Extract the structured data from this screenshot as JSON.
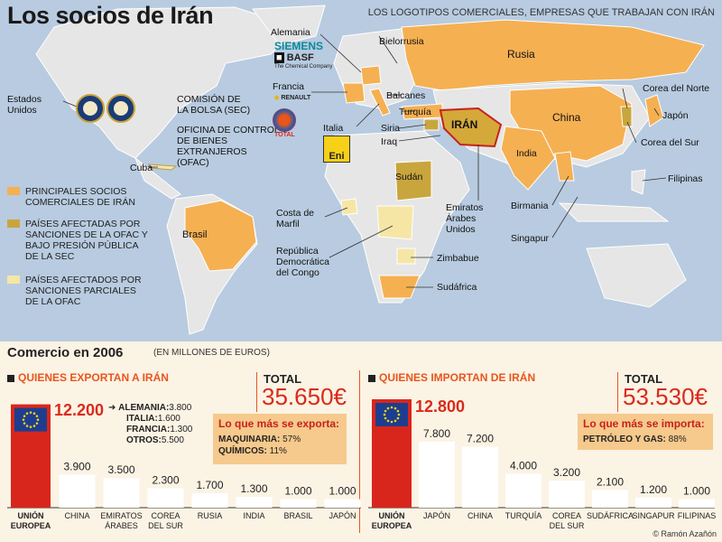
{
  "title": "Los socios de Irán",
  "logos_note": "LOS LOGOTIPOS COMERCIALES, EMPRESAS QUE TRABAJAN CON IRÁN",
  "map_labels": {
    "usa": "Estados\nUnidos",
    "sec": "COMISIÓN DE\nLA BOLSA (SEC)",
    "ofac": "OFICINA DE CONTROL\nDE BIENES\nEXTRANJEROS\n(OFAC)",
    "cuba": "Cuba",
    "brasil": "Brasil",
    "alemania": "Alemania",
    "francia": "Francia",
    "italia": "Italia",
    "bielorrusia": "Bielorrusia",
    "rusia": "Rusia",
    "balcanes": "Balcanes",
    "turquia": "Turquía",
    "siria": "Siria",
    "iraq": "Iraq",
    "iran": "IRÁN",
    "china": "China",
    "india": "India",
    "corea_norte": "Corea del Norte",
    "japon": "Japón",
    "corea_sur": "Corea del Sur",
    "filipinas": "Filipinas",
    "birmania": "Birmania",
    "singapur": "Singapur",
    "sudan": "Sudán",
    "emiratos": "Emiratos\nÁrabes\nUnidos",
    "costa_marfil": "Costa de\nMarfil",
    "congo": "República\nDemocrática\ndel Congo",
    "zimbabue": "Zimbabue",
    "sudafrica": "Sudáfrica"
  },
  "logos": {
    "siemens": "SIEMENS",
    "basf": "BASF",
    "basf_sub": "The Chemical Company",
    "renault": "RENAULT",
    "total": "TOTAL",
    "eni": "Eni"
  },
  "legend": [
    {
      "label": "PRINCIPALES SOCIOS COMERCIALES DE IRÁN",
      "color": "#f5b052"
    },
    {
      "label": "PAÍSES AFECTADAS POR SANCIONES DE LA OFAC Y BAJO PRESIÓN PÚBLICA DE LA SEC",
      "color": "#c9a53d"
    },
    {
      "label": "PAÍSES AFECTADOS POR SANCIONES PARCIALES DE LA OFAC",
      "color": "#f6e6a6"
    }
  ],
  "colors": {
    "partner": "#f5b052",
    "sanctioned": "#c9a53d",
    "partial": "#f6e6a6",
    "iran": "#d4a93a",
    "accent": "#e8561c",
    "red": "#d92b1b",
    "bar": "#ffffff",
    "eu": "#d9261c"
  },
  "trade": {
    "title": "Comercio en 2006",
    "subtitle": "(EN MILLONES DE EUROS)",
    "credit": "© Ramón Azañón"
  },
  "exports": {
    "panel_title": "QUIENES EXPORTAN A IRÁN",
    "total_label": "TOTAL",
    "total_value": "35.650€",
    "eu_value": "12.200",
    "breakdown": [
      {
        "k": "ALEMANIA:",
        "v": "3.800"
      },
      {
        "k": "ITALIA:",
        "v": "1.600"
      },
      {
        "k": "FRANCIA:",
        "v": "1.300"
      },
      {
        "k": "OTROS:",
        "v": "5.500"
      }
    ],
    "box_title": "Lo que más se exporta:",
    "box_rows": [
      {
        "k": "MAQUINARIA:",
        "v": "57%"
      },
      {
        "k": "QUÍMICOS:",
        "v": "11%"
      }
    ]
  },
  "imports": {
    "panel_title": "QUIENES IMPORTAN DE IRÁN",
    "total_label": "TOTAL",
    "total_value": "53.530€",
    "eu_value": "12.800",
    "box_title": "Lo que más se importa:",
    "box_rows": [
      {
        "k": "PETRÓLEO Y GAS:",
        "v": "88%"
      }
    ]
  },
  "chart_data": [
    {
      "type": "bar",
      "title": "QUIENES EXPORTAN A IRÁN",
      "categories": [
        "UNIÓN EUROPEA",
        "CHINA",
        "EMIRATOS ÁRABES",
        "COREA DEL SUR",
        "RUSIA",
        "INDIA",
        "BRASIL",
        "JAPÓN"
      ],
      "values": [
        12200,
        3900,
        3500,
        2300,
        1700,
        1300,
        1000,
        1000
      ],
      "value_labels": [
        "12.200",
        "3.900",
        "3.500",
        "2.300",
        "1.700",
        "1.300",
        "1.000",
        "1.000"
      ]
    },
    {
      "type": "bar",
      "title": "QUIENES IMPORTAN DE IRÁN",
      "categories": [
        "UNIÓN EUROPEA",
        "JAPÓN",
        "CHINA",
        "TURQUÍA",
        "COREA DEL SUR",
        "SUDÁFRICA",
        "SINGAPUR",
        "FILIPINAS"
      ],
      "values": [
        12800,
        7800,
        7200,
        4000,
        3200,
        2100,
        1200,
        1000
      ],
      "value_labels": [
        "12.800",
        "7.800",
        "7.200",
        "4.000",
        "3.200",
        "2.100",
        "1.200",
        "1.000"
      ]
    }
  ]
}
